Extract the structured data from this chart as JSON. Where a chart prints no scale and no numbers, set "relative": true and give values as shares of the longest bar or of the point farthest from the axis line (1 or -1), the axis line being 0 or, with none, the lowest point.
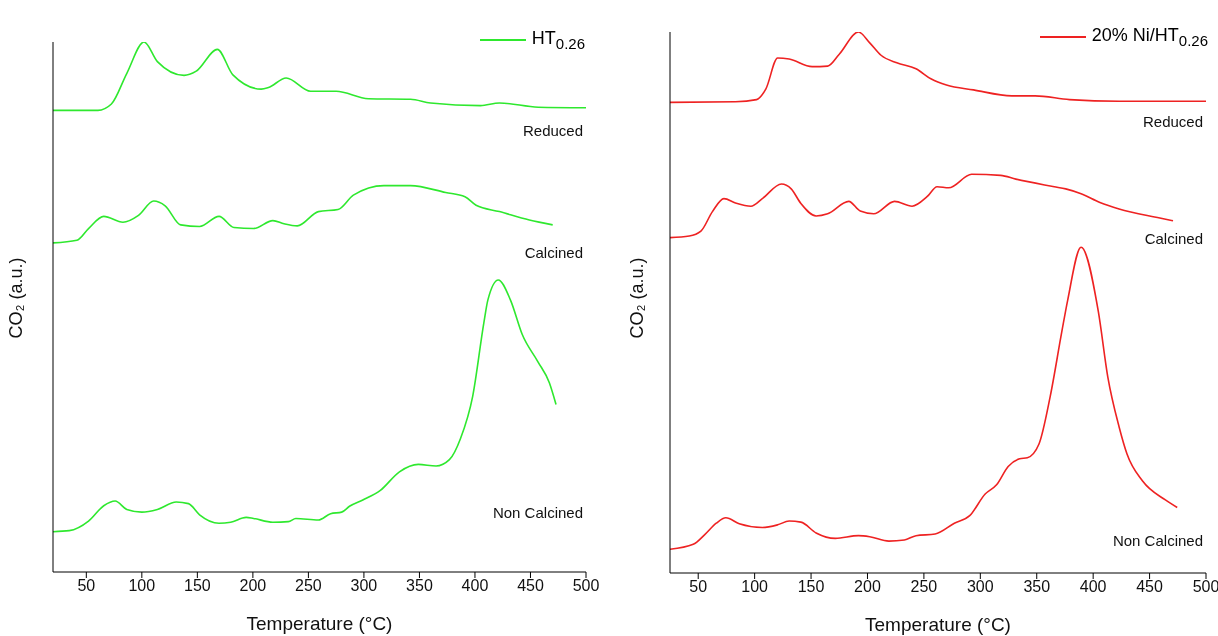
{
  "chart_data": [
    {
      "type": "line",
      "relative": true,
      "xlabel": "Temperature (°C)",
      "ylabel": "CO₂ (a.u.)",
      "annotations": [
        "Reduced",
        "Calcined",
        "Non Calcined"
      ],
      "legend": "top right",
      "tick_labels": "x",
      "grid": false,
      "marker": "none",
      "line_style": "solid",
      "xlim": [
        20,
        500
      ],
      "xticks": [
        50,
        100,
        150,
        200,
        250,
        300,
        350,
        400,
        450,
        500
      ],
      "series": [
        {
          "name": "HT$_{0.26}$",
          "color": "#2ee82e",
          "x": [
            20,
            60.5,
            72.6,
            86.5,
            102,
            114,
            138,
            149,
            168,
            182,
            207.5,
            214,
            230,
            252,
            275,
            304,
            342,
            360,
            405,
            422,
            457,
            500
          ],
          "values": [
            0.871,
            0.871,
            0.883,
            0.941,
            1.0,
            0.963,
            0.937,
            0.945,
            0.986,
            0.938,
            0.911,
            0.914,
            0.932,
            0.907,
            0.907,
            0.893,
            0.892,
            0.885,
            0.88,
            0.885,
            0.877,
            0.876
          ]
        },
        {
          "color": "#2ee82e",
          "x": [
            20,
            41.5,
            52,
            65.7,
            83,
            97,
            110.7,
            121,
            135,
            152,
            169.5,
            183,
            200.6,
            218,
            228,
            240,
            259,
            276.7,
            290.5,
            318,
            342,
            373.6,
            391,
            401,
            422,
            449,
            470
          ],
          "values": [
            0.621,
            0.626,
            0.648,
            0.671,
            0.66,
            0.673,
            0.7,
            0.691,
            0.655,
            0.652,
            0.671,
            0.65,
            0.648,
            0.663,
            0.657,
            0.653,
            0.68,
            0.684,
            0.711,
            0.729,
            0.729,
            0.716,
            0.708,
            0.692,
            0.68,
            0.664,
            0.655
          ]
        },
        {
          "color": "#2ee82e",
          "x": [
            20,
            34.6,
            52,
            65.7,
            76,
            86.5,
            100,
            114,
            131,
            142,
            152,
            169.5,
            180,
            194,
            200.6,
            218,
            232,
            238.7,
            259,
            270,
            280,
            287,
            299,
            314.8,
            332,
            349,
            365,
            377,
            387,
            398,
            408,
            411.6,
            421,
            432,
            442.6,
            456.6,
            467,
            473
          ],
          "values": [
            0.076,
            0.078,
            0.096,
            0.125,
            0.134,
            0.118,
            0.113,
            0.118,
            0.132,
            0.129,
            0.108,
            0.092,
            0.094,
            0.103,
            0.101,
            0.094,
            0.095,
            0.101,
            0.098,
            0.11,
            0.113,
            0.124,
            0.136,
            0.154,
            0.189,
            0.203,
            0.2,
            0.212,
            0.252,
            0.332,
            0.47,
            0.513,
            0.551,
            0.513,
            0.448,
            0.397,
            0.357,
            0.316
          ]
        }
      ]
    },
    {
      "type": "line",
      "relative": true,
      "xlabel": "Temperature (°C)",
      "ylabel": "CO₂ (a.u.)",
      "annotations": [
        "Reduced",
        "Calcined",
        "Non Calcined"
      ],
      "legend": "top right",
      "tick_labels": "x",
      "grid": false,
      "marker": "none",
      "line_style": "solid",
      "xlim": [
        25,
        500
      ],
      "xticks": [
        50,
        100,
        150,
        200,
        250,
        300,
        350,
        400,
        450,
        500
      ],
      "series": [
        {
          "name": "20% Ni/HT$_{0.26}$",
          "color": "#ee2222",
          "x": [
            25,
            83,
            101.7,
            110,
            120.4,
            130.6,
            151,
            164.7,
            175,
            192,
            202,
            212,
            226,
            243,
            256.6,
            270,
            294,
            328,
            348.5,
            379,
            423,
            457,
            500
          ],
          "values": [
            0.87,
            0.871,
            0.875,
            0.895,
            0.952,
            0.95,
            0.936,
            0.937,
            0.959,
            1.0,
            0.98,
            0.957,
            0.943,
            0.932,
            0.913,
            0.902,
            0.893,
            0.882,
            0.882,
            0.875,
            0.872,
            0.872,
            0.872
          ]
        },
        {
          "color": "#ee2222",
          "x": [
            25,
            42.1,
            52.4,
            62.6,
            72.8,
            83,
            96.7,
            106.8,
            123.8,
            132.4,
            141,
            154.5,
            164.7,
            183.4,
            193.6,
            205.5,
            224,
            239.5,
            253,
            261.7,
            272,
            292.3,
            318,
            331.5,
            365.5,
            375.7,
            389.3,
            406,
            423,
            457,
            470.8
          ],
          "values": [
            0.62,
            0.623,
            0.632,
            0.668,
            0.692,
            0.684,
            0.678,
            0.692,
            0.719,
            0.71,
            0.683,
            0.66,
            0.664,
            0.687,
            0.669,
            0.664,
            0.687,
            0.678,
            0.696,
            0.714,
            0.712,
            0.737,
            0.735,
            0.728,
            0.714,
            0.71,
            0.701,
            0.685,
            0.673,
            0.657,
            0.651
          ]
        },
        {
          "color": "#ee2222",
          "x": [
            25,
            45.6,
            55.8,
            66,
            74.5,
            86.4,
            106.8,
            120.4,
            130.6,
            141,
            154.5,
            171.5,
            192,
            202,
            219,
            232.7,
            243,
            260,
            277,
            290.6,
            304.3,
            314.4,
            324.7,
            334.9,
            341.7,
            351.9,
            362,
            372.3,
            377.4,
            389.3,
            404.6,
            413,
            423,
            430,
            443.8,
            464,
            474.5
          ],
          "values": [
            0.044,
            0.053,
            0.071,
            0.092,
            0.102,
            0.091,
            0.084,
            0.089,
            0.096,
            0.094,
            0.074,
            0.064,
            0.069,
            0.067,
            0.059,
            0.061,
            0.069,
            0.072,
            0.092,
            0.106,
            0.146,
            0.163,
            0.197,
            0.211,
            0.213,
            0.238,
            0.327,
            0.447,
            0.504,
            0.602,
            0.483,
            0.362,
            0.27,
            0.22,
            0.17,
            0.135,
            0.121
          ]
        }
      ]
    }
  ]
}
